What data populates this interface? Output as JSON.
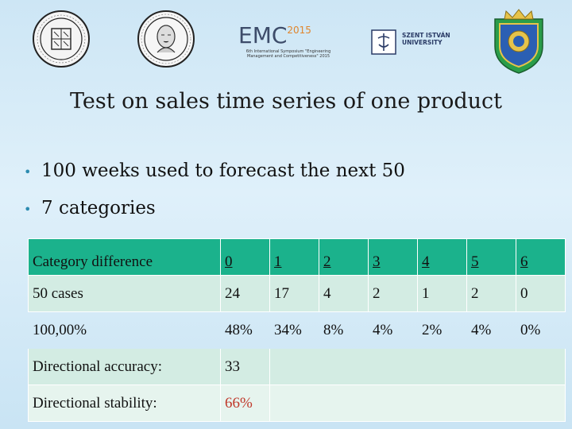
{
  "logos": {
    "emc_title": "EMC",
    "emc_sup": "2015",
    "emc_subtitle": "6th International Symposium \"Engineering Management and Competitiveness\" 2015",
    "szent_istvan": "SZENT ISTVÁN\nUNIVERSITY"
  },
  "title": "Test on sales time series of one product",
  "bullets": [
    "100 weeks used to forecast the next 50",
    "7 categories"
  ],
  "table": {
    "header": {
      "label": "Category difference",
      "values": [
        "0",
        "1",
        "2",
        "3",
        "4",
        "5",
        "6"
      ]
    },
    "cases": {
      "label": "50 cases",
      "values": [
        "24",
        "17",
        "4",
        "2",
        "1",
        "2",
        "0"
      ]
    },
    "percent": {
      "label": "100,00%",
      "values": [
        "48%",
        "34%",
        "8%",
        "4%",
        "2%",
        "4%",
        "0%"
      ]
    },
    "accuracy": {
      "label": "Directional accuracy:",
      "value": "33"
    },
    "stability": {
      "label": "Directional stability:",
      "value": "66%"
    }
  },
  "colors": {
    "header_bg": "#1bb28c",
    "row_bg": "#d3ece3",
    "stability_value": "#c0392b",
    "background": "#d4eaf7"
  }
}
